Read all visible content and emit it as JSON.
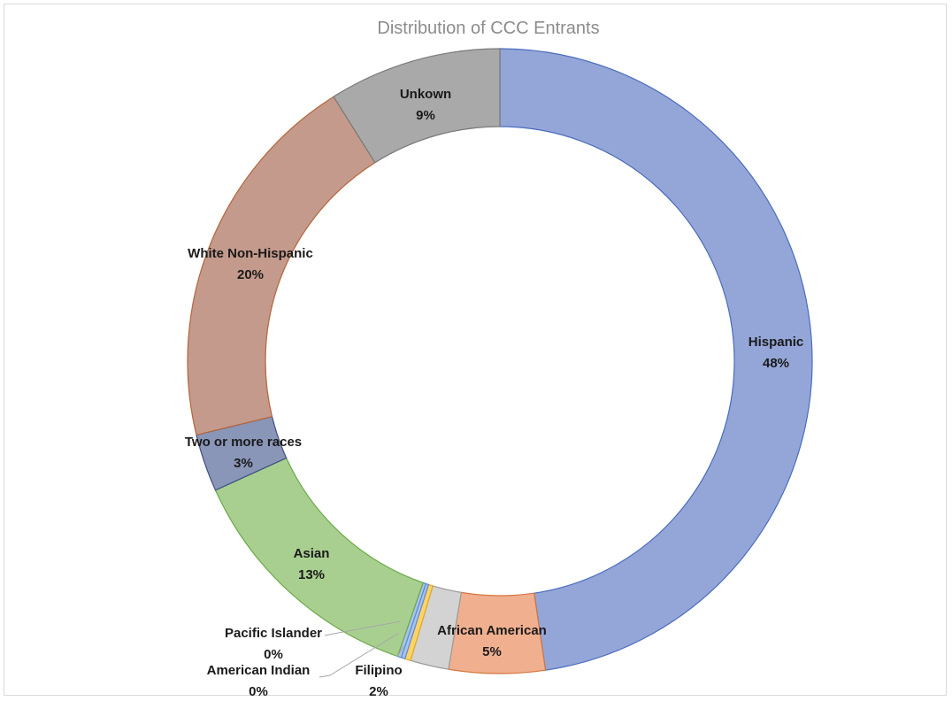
{
  "chart_data": {
    "type": "pie",
    "variant": "donut",
    "title": "Distribution of CCC Entrants",
    "slices": [
      {
        "name": "Hispanic",
        "value": 48,
        "label": "48%",
        "color": "#94a6d8",
        "stroke": "#4a6bbf"
      },
      {
        "name": "African American",
        "value": 5,
        "label": "5%",
        "color": "#f0b090",
        "stroke": "#d5743c"
      },
      {
        "name": "Filipino",
        "value": 2,
        "label": "2%",
        "color": "#d3d3d3",
        "stroke": "#9c9c9c"
      },
      {
        "name": "Filipino",
        "value": 0.3,
        "label": "",
        "color": "#ffd36a",
        "stroke": "#e6a817"
      },
      {
        "name": "American Indian",
        "value": 0.2,
        "label": "0%",
        "color": "#a9c4ea",
        "stroke": "#5b8bd3"
      },
      {
        "name": "Pacific Islander",
        "value": 0.2,
        "label": "0%",
        "color": "#a9c4ea",
        "stroke": "#5b8bd3"
      },
      {
        "name": "Asian",
        "value": 13,
        "label": "13%",
        "color": "#a9cf90",
        "stroke": "#6aab47"
      },
      {
        "name": "Two or more races",
        "value": 3,
        "label": "3%",
        "color": "#8a96b8",
        "stroke": "#3e4f86"
      },
      {
        "name": "White Non-Hispanic",
        "value": 20,
        "label": "20%",
        "color": "#c49a8c",
        "stroke": "#b5653a"
      },
      {
        "name": "Unkown",
        "value": 9,
        "label": "9%",
        "color": "#a9a9a9",
        "stroke": "#7a7a7a"
      }
    ],
    "labels": [
      {
        "name": "Hispanic",
        "pct": "48%"
      },
      {
        "name": "African American",
        "pct": "5%"
      },
      {
        "name": "Filipino",
        "pct": "2%"
      },
      {
        "name": "American Indian",
        "pct": "0%"
      },
      {
        "name": "Pacific Islander",
        "pct": "0%"
      },
      {
        "name": "Asian",
        "pct": "13%"
      },
      {
        "name": "Two or more races",
        "pct": "3%"
      },
      {
        "name": "White Non-Hispanic",
        "pct": "20%"
      },
      {
        "name": "Unkown",
        "pct": "9%"
      }
    ],
    "legend": "none"
  }
}
